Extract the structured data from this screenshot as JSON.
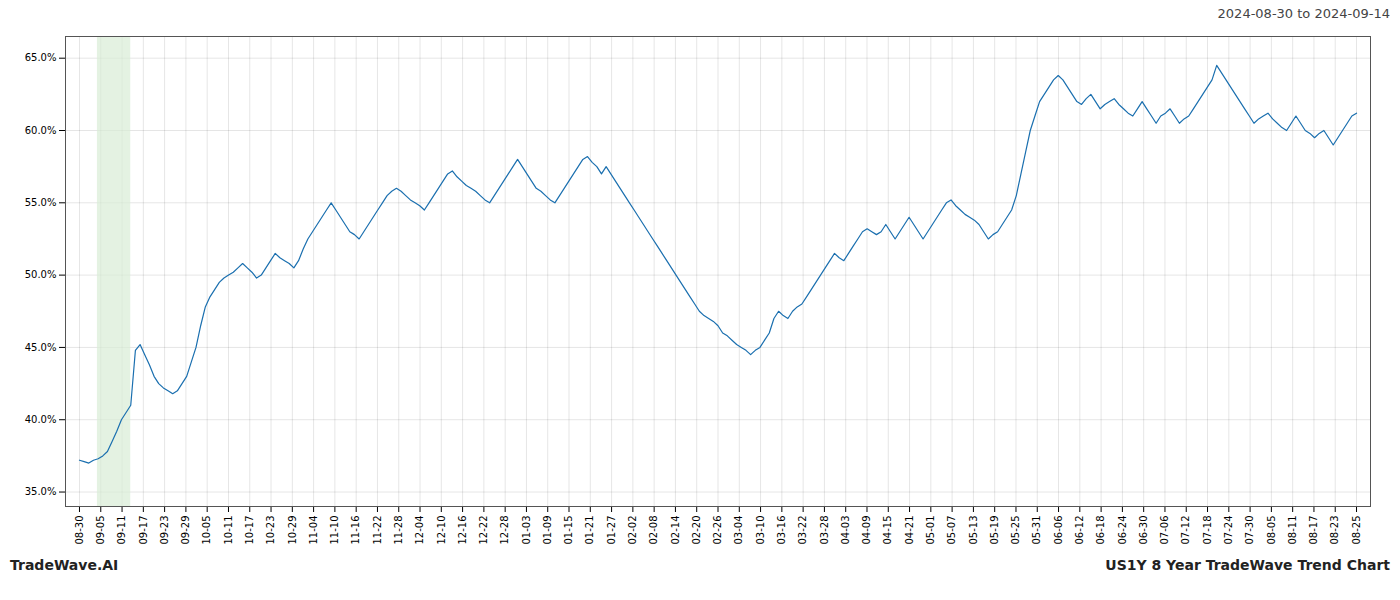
{
  "chart_data": {
    "type": "line",
    "annotations": [
      "2024-08-30 to 2024-09-14",
      "TradeWave.AI",
      "US1Y 8 Year TradeWave Trend Chart"
    ],
    "color": "#1a6faf",
    "grid": true,
    "highlight": {
      "x": [
        3.85,
        11.0
      ],
      "color": "#d8edd6"
    },
    "xlim": [
      -3,
      277
    ],
    "ylim": [
      34.0,
      66.5
    ],
    "yticks": [
      {
        "value": 35.0,
        "label": "35.0%"
      },
      {
        "value": 40.0,
        "label": "40.0%"
      },
      {
        "value": 45.0,
        "label": "45.0%"
      },
      {
        "value": 50.0,
        "label": "50.0%"
      },
      {
        "value": 55.0,
        "label": "55.0%"
      },
      {
        "value": 60.0,
        "label": "60.0%"
      },
      {
        "value": 65.0,
        "label": "65.0%"
      }
    ],
    "xticks": [
      {
        "value": 0,
        "label": "08-30"
      },
      {
        "value": 4.56667,
        "label": "09-05"
      },
      {
        "value": 9.13333,
        "label": "09-11"
      },
      {
        "value": 13.7,
        "label": "09-17"
      },
      {
        "value": 18.26667,
        "label": "09-23"
      },
      {
        "value": 22.83333,
        "label": "09-29"
      },
      {
        "value": 27.4,
        "label": "10-05"
      },
      {
        "value": 31.96667,
        "label": "10-11"
      },
      {
        "value": 36.53333,
        "label": "10-17"
      },
      {
        "value": 41.1,
        "label": "10-23"
      },
      {
        "value": 45.66667,
        "label": "10-29"
      },
      {
        "value": 50.23333,
        "label": "11-04"
      },
      {
        "value": 54.8,
        "label": "11-10"
      },
      {
        "value": 59.36667,
        "label": "11-16"
      },
      {
        "value": 63.93333,
        "label": "11-22"
      },
      {
        "value": 68.5,
        "label": "11-28"
      },
      {
        "value": 73.06667,
        "label": "12-04"
      },
      {
        "value": 77.63333,
        "label": "12-10"
      },
      {
        "value": 82.2,
        "label": "12-16"
      },
      {
        "value": 86.76667,
        "label": "12-22"
      },
      {
        "value": 91.33333,
        "label": "12-28"
      },
      {
        "value": 95.9,
        "label": "01-03"
      },
      {
        "value": 100.46667,
        "label": "01-09"
      },
      {
        "value": 105.03333,
        "label": "01-15"
      },
      {
        "value": 109.6,
        "label": "01-21"
      },
      {
        "value": 114.16667,
        "label": "01-27"
      },
      {
        "value": 118.73333,
        "label": "02-02"
      },
      {
        "value": 123.3,
        "label": "02-08"
      },
      {
        "value": 127.86667,
        "label": "02-14"
      },
      {
        "value": 132.43333,
        "label": "02-20"
      },
      {
        "value": 137,
        "label": "02-26"
      },
      {
        "value": 141.56667,
        "label": "03-04"
      },
      {
        "value": 146.13333,
        "label": "03-10"
      },
      {
        "value": 150.7,
        "label": "03-16"
      },
      {
        "value": 155.26667,
        "label": "03-22"
      },
      {
        "value": 159.83333,
        "label": "03-28"
      },
      {
        "value": 164.4,
        "label": "04-03"
      },
      {
        "value": 168.96667,
        "label": "04-09"
      },
      {
        "value": 173.53333,
        "label": "04-15"
      },
      {
        "value": 178.1,
        "label": "04-21"
      },
      {
        "value": 182.66667,
        "label": "05-01"
      },
      {
        "value": 187.23333,
        "label": "05-07"
      },
      {
        "value": 191.8,
        "label": "05-13"
      },
      {
        "value": 196.36667,
        "label": "05-19"
      },
      {
        "value": 200.93333,
        "label": "05-25"
      },
      {
        "value": 205.5,
        "label": "05-31"
      },
      {
        "value": 210.06667,
        "label": "06-06"
      },
      {
        "value": 214.63333,
        "label": "06-12"
      },
      {
        "value": 219.2,
        "label": "06-18"
      },
      {
        "value": 223.76667,
        "label": "06-24"
      },
      {
        "value": 228.33333,
        "label": "06-30"
      },
      {
        "value": 232.9,
        "label": "07-06"
      },
      {
        "value": 237.46667,
        "label": "07-12"
      },
      {
        "value": 242.03333,
        "label": "07-18"
      },
      {
        "value": 246.6,
        "label": "07-24"
      },
      {
        "value": 251.16667,
        "label": "07-30"
      },
      {
        "value": 255.73333,
        "label": "08-05"
      },
      {
        "value": 260.3,
        "label": "08-11"
      },
      {
        "value": 264.86667,
        "label": "08-17"
      },
      {
        "value": 269.43333,
        "label": "08-23"
      },
      {
        "value": 274,
        "label": "08-25"
      }
    ],
    "x": [
      0,
      1,
      2,
      3,
      4,
      5,
      6,
      7,
      8,
      9,
      10,
      11,
      12,
      13,
      14,
      15,
      16,
      17,
      18,
      19,
      20,
      21,
      22,
      23,
      24,
      25,
      26,
      27,
      28,
      29,
      30,
      31,
      32,
      33,
      34,
      35,
      36,
      37,
      38,
      39,
      40,
      41,
      42,
      43,
      44,
      45,
      46,
      47,
      48,
      49,
      50,
      51,
      52,
      53,
      54,
      55,
      56,
      57,
      58,
      59,
      60,
      61,
      62,
      63,
      64,
      65,
      66,
      67,
      68,
      69,
      70,
      71,
      72,
      73,
      74,
      75,
      76,
      77,
      78,
      79,
      80,
      81,
      82,
      83,
      84,
      85,
      86,
      87,
      88,
      89,
      90,
      91,
      92,
      93,
      94,
      95,
      96,
      97,
      98,
      99,
      100,
      101,
      102,
      103,
      104,
      105,
      106,
      107,
      108,
      109,
      110,
      111,
      112,
      113,
      114,
      115,
      116,
      117,
      118,
      119,
      120,
      121,
      122,
      123,
      124,
      125,
      126,
      127,
      128,
      129,
      130,
      131,
      132,
      133,
      134,
      135,
      136,
      137,
      138,
      139,
      140,
      141,
      142,
      143,
      144,
      145,
      146,
      147,
      148,
      149,
      150,
      151,
      152,
      153,
      154,
      155,
      156,
      157,
      158,
      159,
      160,
      161,
      162,
      163,
      164,
      165,
      166,
      167,
      168,
      169,
      170,
      171,
      172,
      173,
      174,
      175,
      176,
      177,
      178,
      179,
      180,
      181,
      182,
      183,
      184,
      185,
      186,
      187,
      188,
      189,
      190,
      191,
      192,
      193,
      194,
      195,
      196,
      197,
      198,
      199,
      200,
      201,
      202,
      203,
      204,
      205,
      206,
      207,
      208,
      209,
      210,
      211,
      212,
      213,
      214,
      215,
      216,
      217,
      218,
      219,
      220,
      221,
      222,
      223,
      224,
      225,
      226,
      227,
      228,
      229,
      230,
      231,
      232,
      233,
      234,
      235,
      236,
      237,
      238,
      239,
      240,
      241,
      242,
      243,
      244,
      245,
      246,
      247,
      248,
      249,
      250,
      251,
      252,
      253,
      254,
      255,
      256,
      257,
      258,
      259,
      260,
      261,
      262,
      263,
      264,
      265,
      266,
      267,
      268,
      269,
      270,
      271,
      272,
      273,
      274
    ],
    "values": [
      37.2,
      37.1,
      37.0,
      37.2,
      37.3,
      37.5,
      37.8,
      38.5,
      39.2,
      40.0,
      40.5,
      41.0,
      44.8,
      45.2,
      44.5,
      43.8,
      43.0,
      42.5,
      42.2,
      42.0,
      41.8,
      42.0,
      42.5,
      43.0,
      44.0,
      45.0,
      46.5,
      47.8,
      48.5,
      49.0,
      49.5,
      49.8,
      50.0,
      50.2,
      50.5,
      50.8,
      50.5,
      50.2,
      49.8,
      50.0,
      50.5,
      51.0,
      51.5,
      51.2,
      51.0,
      50.8,
      50.5,
      51.0,
      51.8,
      52.5,
      53.0,
      53.5,
      54.0,
      54.5,
      55.0,
      54.5,
      54.0,
      53.5,
      53.0,
      52.8,
      52.5,
      53.0,
      53.5,
      54.0,
      54.5,
      55.0,
      55.5,
      55.8,
      56.0,
      55.8,
      55.5,
      55.2,
      55.0,
      54.8,
      54.5,
      55.0,
      55.5,
      56.0,
      56.5,
      57.0,
      57.2,
      56.8,
      56.5,
      56.2,
      56.0,
      55.8,
      55.5,
      55.2,
      55.0,
      55.5,
      56.0,
      56.5,
      57.0,
      57.5,
      58.0,
      57.5,
      57.0,
      56.5,
      56.0,
      55.8,
      55.5,
      55.2,
      55.0,
      55.5,
      56.0,
      56.5,
      57.0,
      57.5,
      58.0,
      58.2,
      57.8,
      57.5,
      57.0,
      57.5,
      57.0,
      56.5,
      56.0,
      55.5,
      55.0,
      54.5,
      54.0,
      53.5,
      53.0,
      52.5,
      52.0,
      51.5,
      51.0,
      50.5,
      50.0,
      49.5,
      49.0,
      48.5,
      48.0,
      47.5,
      47.2,
      47.0,
      46.8,
      46.5,
      46.0,
      45.8,
      45.5,
      45.2,
      45.0,
      44.8,
      44.5,
      44.8,
      45.0,
      45.5,
      46.0,
      47.0,
      47.5,
      47.2,
      47.0,
      47.5,
      47.8,
      48.0,
      48.5,
      49.0,
      49.5,
      50.0,
      50.5,
      51.0,
      51.5,
      51.2,
      51.0,
      51.5,
      52.0,
      52.5,
      53.0,
      53.2,
      53.0,
      52.8,
      53.0,
      53.5,
      53.0,
      52.5,
      53.0,
      53.5,
      54.0,
      53.5,
      53.0,
      52.5,
      53.0,
      53.5,
      54.0,
      54.5,
      55.0,
      55.2,
      54.8,
      54.5,
      54.2,
      54.0,
      53.8,
      53.5,
      53.0,
      52.5,
      52.8,
      53.0,
      53.5,
      54.0,
      54.5,
      55.5,
      57.0,
      58.5,
      60.0,
      61.0,
      62.0,
      62.5,
      63.0,
      63.5,
      63.8,
      63.5,
      63.0,
      62.5,
      62.0,
      61.8,
      62.2,
      62.5,
      62.0,
      61.5,
      61.8,
      62.0,
      62.2,
      61.8,
      61.5,
      61.2,
      61.0,
      61.5,
      62.0,
      61.5,
      61.0,
      60.5,
      61.0,
      61.2,
      61.5,
      61.0,
      60.5,
      60.8,
      61.0,
      61.5,
      62.0,
      62.5,
      63.0,
      63.5,
      64.5,
      64.0,
      63.5,
      63.0,
      62.5,
      62.0,
      61.5,
      61.0,
      60.5,
      60.8,
      61.0,
      61.2,
      60.8,
      60.5,
      60.2,
      60.0,
      60.5,
      61.0,
      60.5,
      60.0,
      59.8,
      59.5,
      59.8,
      60.0,
      59.5,
      59.0,
      59.5,
      60.0,
      60.5,
      61.0,
      61.2
    ]
  }
}
